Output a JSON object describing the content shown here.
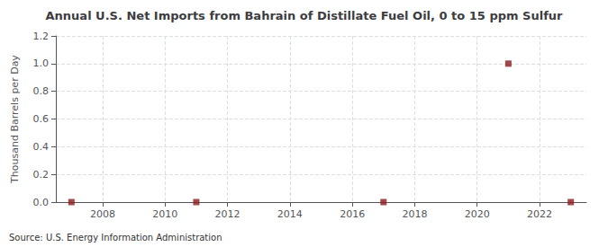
{
  "chart_data": {
    "type": "scatter",
    "title": "Annual U.S. Net Imports from Bahrain of Distillate Fuel Oil, 0 to 15 ppm Sulfur",
    "ylabel": "Thousand Barrels per Day",
    "annotation": "Source: U.S. Energy Information Administration",
    "x": [
      2007,
      2011,
      2017,
      2021,
      2023
    ],
    "values": [
      0.0,
      0.0,
      0.0,
      1.0,
      0.0
    ],
    "color": "#8b1a1a",
    "marker": "square",
    "xlim": [
      2006.5,
      2023.5
    ],
    "xticks": [
      2008,
      2010,
      2012,
      2014,
      2016,
      2018,
      2020,
      2022
    ],
    "ylim": [
      0.0,
      1.2
    ],
    "yticks": [
      {
        "value": 0,
        "label": "0.0"
      },
      0.2,
      0.4,
      0.6,
      0.8,
      {
        "value": 1,
        "label": "1.0"
      },
      1.2
    ],
    "grid": true
  }
}
